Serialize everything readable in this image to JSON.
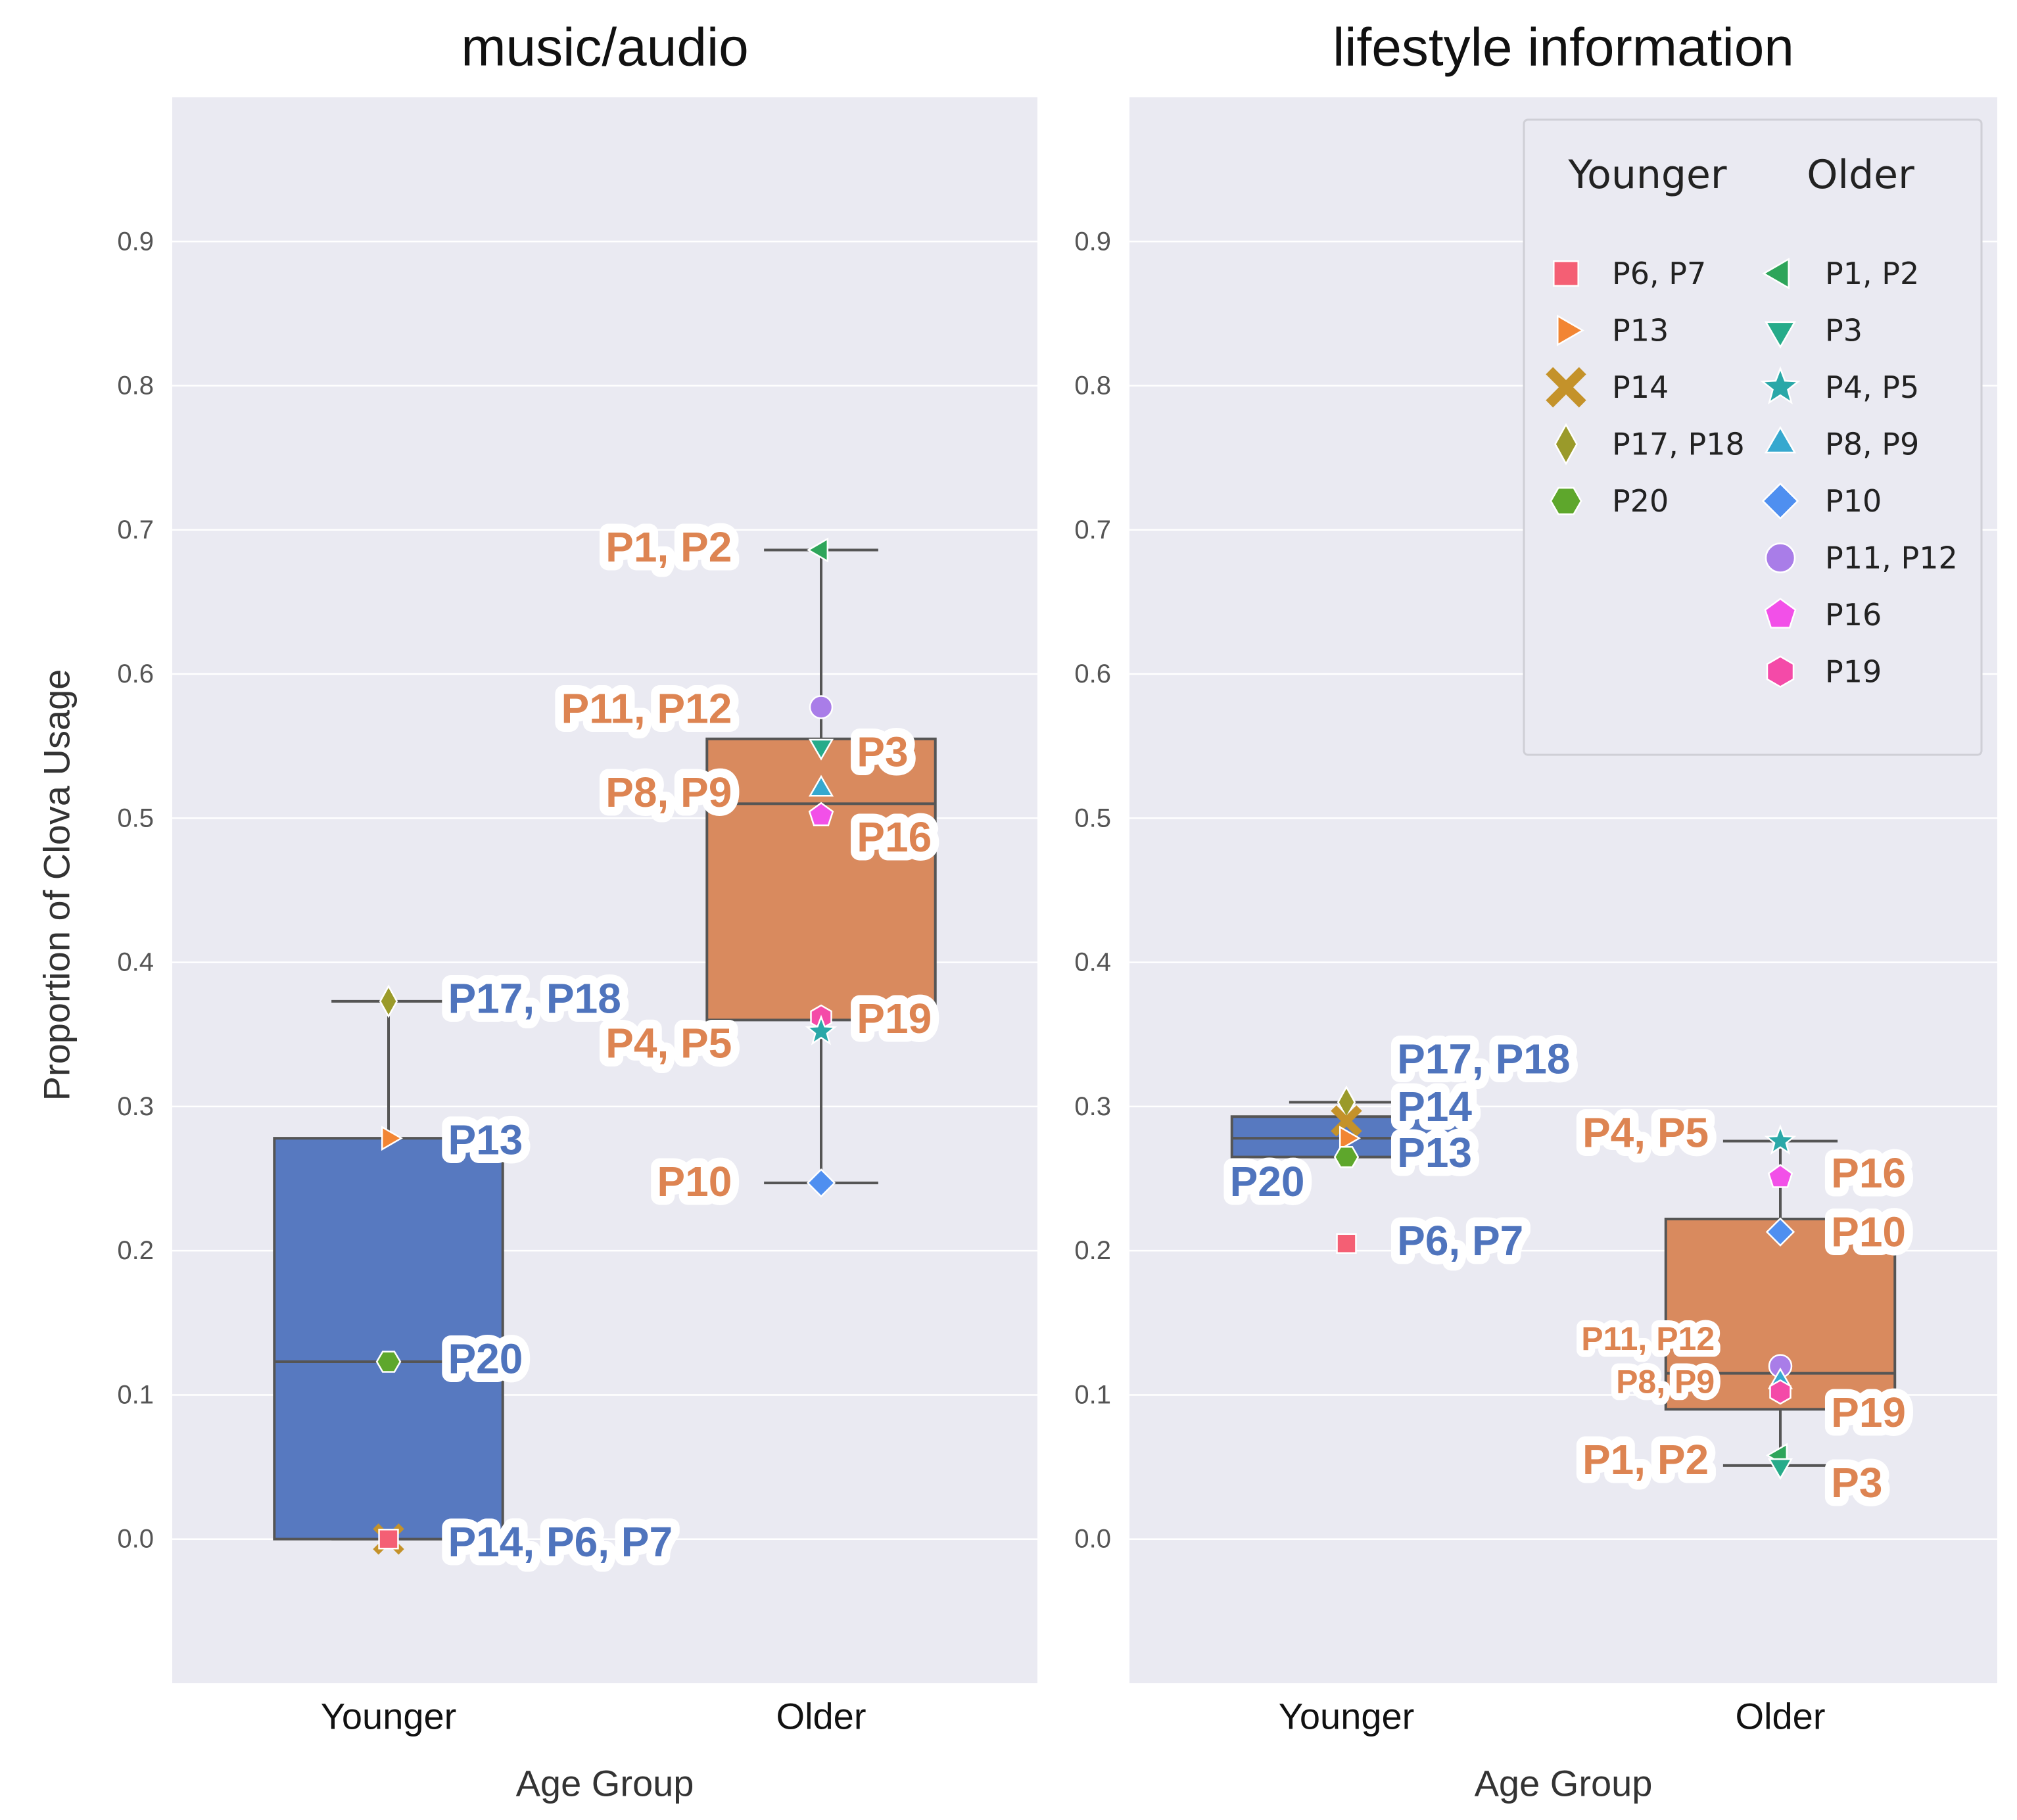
{
  "colors": {
    "plot_bg": "#eaeaf2",
    "grid": "#ffffff",
    "younger_box": "#5779c0",
    "older_box": "#d98a5e",
    "younger_text": "#4f74bd",
    "older_text": "#dd8452",
    "box_edge": "#555555",
    "tick_text": "#555555",
    "axis_text": "#333333"
  },
  "markers": {
    "P6, P7": {
      "shape": "square",
      "color": "#f45f74"
    },
    "P13": {
      "shape": "triangle-right",
      "color": "#f28533"
    },
    "P14": {
      "shape": "x",
      "color": "#c4922a"
    },
    "P17, P18": {
      "shape": "diamond-thin",
      "color": "#9a9a2a"
    },
    "P20": {
      "shape": "hexagon",
      "color": "#5ea72c"
    },
    "P1, P2": {
      "shape": "triangle-left",
      "color": "#2ea55a"
    },
    "P3": {
      "shape": "triangle-down",
      "color": "#26ab8a"
    },
    "P4, P5": {
      "shape": "star",
      "color": "#2aa8a8"
    },
    "P8, P9": {
      "shape": "triangle-up",
      "color": "#36a8cf"
    },
    "P10": {
      "shape": "diamond",
      "color": "#4f8ff0"
    },
    "P11, P12": {
      "shape": "circle",
      "color": "#a97de8"
    },
    "P16": {
      "shape": "pentagon",
      "color": "#f250e8"
    },
    "P19": {
      "shape": "hexagon-flat",
      "color": "#f44aa8"
    }
  },
  "legend": {
    "placement": "top-right of right panel",
    "younger_header": "Younger",
    "older_header": "Older",
    "younger": [
      "P6, P7",
      "P13",
      "P14",
      "P17, P18",
      "P20"
    ],
    "older": [
      "P1, P2",
      "P3",
      "P4, P5",
      "P8, P9",
      "P10",
      "P11, P12",
      "P16",
      "P19"
    ]
  },
  "chart_data": [
    {
      "type": "box",
      "title": "music/audio",
      "xlabel": "Age Group",
      "ylabel": "Proportion of Clova Usage",
      "ylim": [
        -0.1,
        1.0
      ],
      "yticks": [
        "0.0",
        "0.1",
        "0.2",
        "0.3",
        "0.4",
        "0.5",
        "0.6",
        "0.7",
        "0.8",
        "0.9"
      ],
      "categories": [
        "Younger",
        "Older"
      ],
      "grid": true,
      "boxes": [
        {
          "group": "Younger",
          "q1": 0.0,
          "median": 0.123,
          "q3": 0.278,
          "whisker_low": 0.0,
          "whisker_high": 0.373
        },
        {
          "group": "Older",
          "q1": 0.36,
          "median": 0.51,
          "q3": 0.555,
          "whisker_low": 0.247,
          "whisker_high": 0.686
        }
      ],
      "points": [
        {
          "group": "Younger",
          "id": "P17, P18",
          "y": 0.373
        },
        {
          "group": "Younger",
          "id": "P13",
          "y": 0.278
        },
        {
          "group": "Younger",
          "id": "P20",
          "y": 0.123
        },
        {
          "group": "Younger",
          "id": "P14",
          "y": 0.0
        },
        {
          "group": "Younger",
          "id": "P6, P7",
          "y": 0.0
        },
        {
          "group": "Older",
          "id": "P1, P2",
          "y": 0.686
        },
        {
          "group": "Older",
          "id": "P11, P12",
          "y": 0.577
        },
        {
          "group": "Older",
          "id": "P3",
          "y": 0.55
        },
        {
          "group": "Older",
          "id": "P8, P9",
          "y": 0.52
        },
        {
          "group": "Older",
          "id": "P16",
          "y": 0.502
        },
        {
          "group": "Older",
          "id": "P19",
          "y": 0.362
        },
        {
          "group": "Older",
          "id": "P4, P5",
          "y": 0.352
        },
        {
          "group": "Older",
          "id": "P10",
          "y": 0.247
        }
      ],
      "annotations": [
        {
          "text": "P17, P18",
          "group": "Younger",
          "y": 0.375,
          "side": "right",
          "offset": 1,
          "color": "younger"
        },
        {
          "text": "P13",
          "group": "Younger",
          "y": 0.277,
          "side": "right",
          "offset": 1,
          "color": "younger"
        },
        {
          "text": "P20",
          "group": "Younger",
          "y": 0.125,
          "side": "right",
          "offset": 1,
          "color": "younger"
        },
        {
          "text": "P14, P6, P7",
          "group": "Younger",
          "y": -0.002,
          "side": "right",
          "offset": 1,
          "color": "younger"
        },
        {
          "text": "P1, P2",
          "group": "Older",
          "y": 0.688,
          "side": "left",
          "offset": 1.5,
          "color": "older"
        },
        {
          "text": "P11, P12",
          "group": "Older",
          "y": 0.576,
          "side": "left",
          "offset": 1.5,
          "color": "older"
        },
        {
          "text": "P8, P9",
          "group": "Older",
          "y": 0.518,
          "side": "left",
          "offset": 1.5,
          "color": "older"
        },
        {
          "text": "P4, P5",
          "group": "Older",
          "y": 0.344,
          "side": "left",
          "offset": 1.5,
          "color": "older"
        },
        {
          "text": "P10",
          "group": "Older",
          "y": 0.248,
          "side": "left",
          "offset": 1.5,
          "color": "older"
        },
        {
          "text": "P3",
          "group": "Older",
          "y": 0.546,
          "side": "right",
          "offset": 0.6,
          "color": "older"
        },
        {
          "text": "P16",
          "group": "Older",
          "y": 0.487,
          "side": "right",
          "offset": 0.6,
          "color": "older"
        },
        {
          "text": "P19",
          "group": "Older",
          "y": 0.361,
          "side": "right",
          "offset": 0.6,
          "color": "older"
        }
      ]
    },
    {
      "type": "box",
      "title": "lifestyle information",
      "xlabel": "Age Group",
      "ylabel": "",
      "ylim": [
        -0.1,
        1.0
      ],
      "yticks": [
        "0.0",
        "0.1",
        "0.2",
        "0.3",
        "0.4",
        "0.5",
        "0.6",
        "0.7",
        "0.8",
        "0.9"
      ],
      "categories": [
        "Younger",
        "Older"
      ],
      "grid": true,
      "boxes": [
        {
          "group": "Younger",
          "q1": 0.265,
          "median": 0.278,
          "q3": 0.293,
          "whisker_low": 0.265,
          "whisker_high": 0.303
        },
        {
          "group": "Older",
          "q1": 0.09,
          "median": 0.115,
          "q3": 0.222,
          "whisker_low": 0.051,
          "whisker_high": 0.276
        }
      ],
      "points": [
        {
          "group": "Younger",
          "id": "P17, P18",
          "y": 0.303
        },
        {
          "group": "Younger",
          "id": "P14",
          "y": 0.29
        },
        {
          "group": "Younger",
          "id": "P13",
          "y": 0.278
        },
        {
          "group": "Younger",
          "id": "P20",
          "y": 0.265
        },
        {
          "group": "Younger",
          "id": "P6, P7",
          "y": 0.205
        },
        {
          "group": "Older",
          "id": "P4, P5",
          "y": 0.276
        },
        {
          "group": "Older",
          "id": "P16",
          "y": 0.251
        },
        {
          "group": "Older",
          "id": "P10",
          "y": 0.213
        },
        {
          "group": "Older",
          "id": "P11, P12",
          "y": 0.12
        },
        {
          "group": "Older",
          "id": "P8, P9",
          "y": 0.109
        },
        {
          "group": "Older",
          "id": "P19",
          "y": 0.102
        },
        {
          "group": "Older",
          "id": "P1, P2",
          "y": 0.058
        },
        {
          "group": "Older",
          "id": "P3",
          "y": 0.051
        }
      ],
      "annotations": [
        {
          "text": "P17, P18",
          "group": "Younger",
          "y": 0.333,
          "side": "right",
          "offset": 0.85,
          "color": "younger"
        },
        {
          "text": "P14",
          "group": "Younger",
          "y": 0.3,
          "side": "right",
          "offset": 0.85,
          "color": "younger"
        },
        {
          "text": "P13",
          "group": "Younger",
          "y": 0.268,
          "side": "right",
          "offset": 0.85,
          "color": "younger"
        },
        {
          "text": "P6, P7",
          "group": "Younger",
          "y": 0.207,
          "side": "right",
          "offset": 0.85,
          "color": "younger"
        },
        {
          "text": "P20",
          "group": "Younger",
          "y": 0.248,
          "side": "left",
          "offset": 0.7,
          "color": "younger"
        },
        {
          "text": "P4, P5",
          "group": "Older",
          "y": 0.282,
          "side": "left",
          "offset": 1.2,
          "color": "older"
        },
        {
          "text": "P11, P12",
          "group": "Older",
          "y": 0.139,
          "side": "left",
          "offset": 1.1,
          "color": "older",
          "small": true
        },
        {
          "text": "P8, P9",
          "group": "Older",
          "y": 0.109,
          "side": "left",
          "offset": 1.1,
          "color": "older",
          "small": true
        },
        {
          "text": "P1, P2",
          "group": "Older",
          "y": 0.055,
          "side": "left",
          "offset": 1.2,
          "color": "older"
        },
        {
          "text": "P16",
          "group": "Older",
          "y": 0.254,
          "side": "right",
          "offset": 0.85,
          "color": "older"
        },
        {
          "text": "P10",
          "group": "Older",
          "y": 0.213,
          "side": "right",
          "offset": 0.85,
          "color": "older"
        },
        {
          "text": "P19",
          "group": "Older",
          "y": 0.088,
          "side": "right",
          "offset": 0.85,
          "color": "older"
        },
        {
          "text": "P3",
          "group": "Older",
          "y": 0.039,
          "side": "right",
          "offset": 0.85,
          "color": "older"
        }
      ]
    }
  ]
}
